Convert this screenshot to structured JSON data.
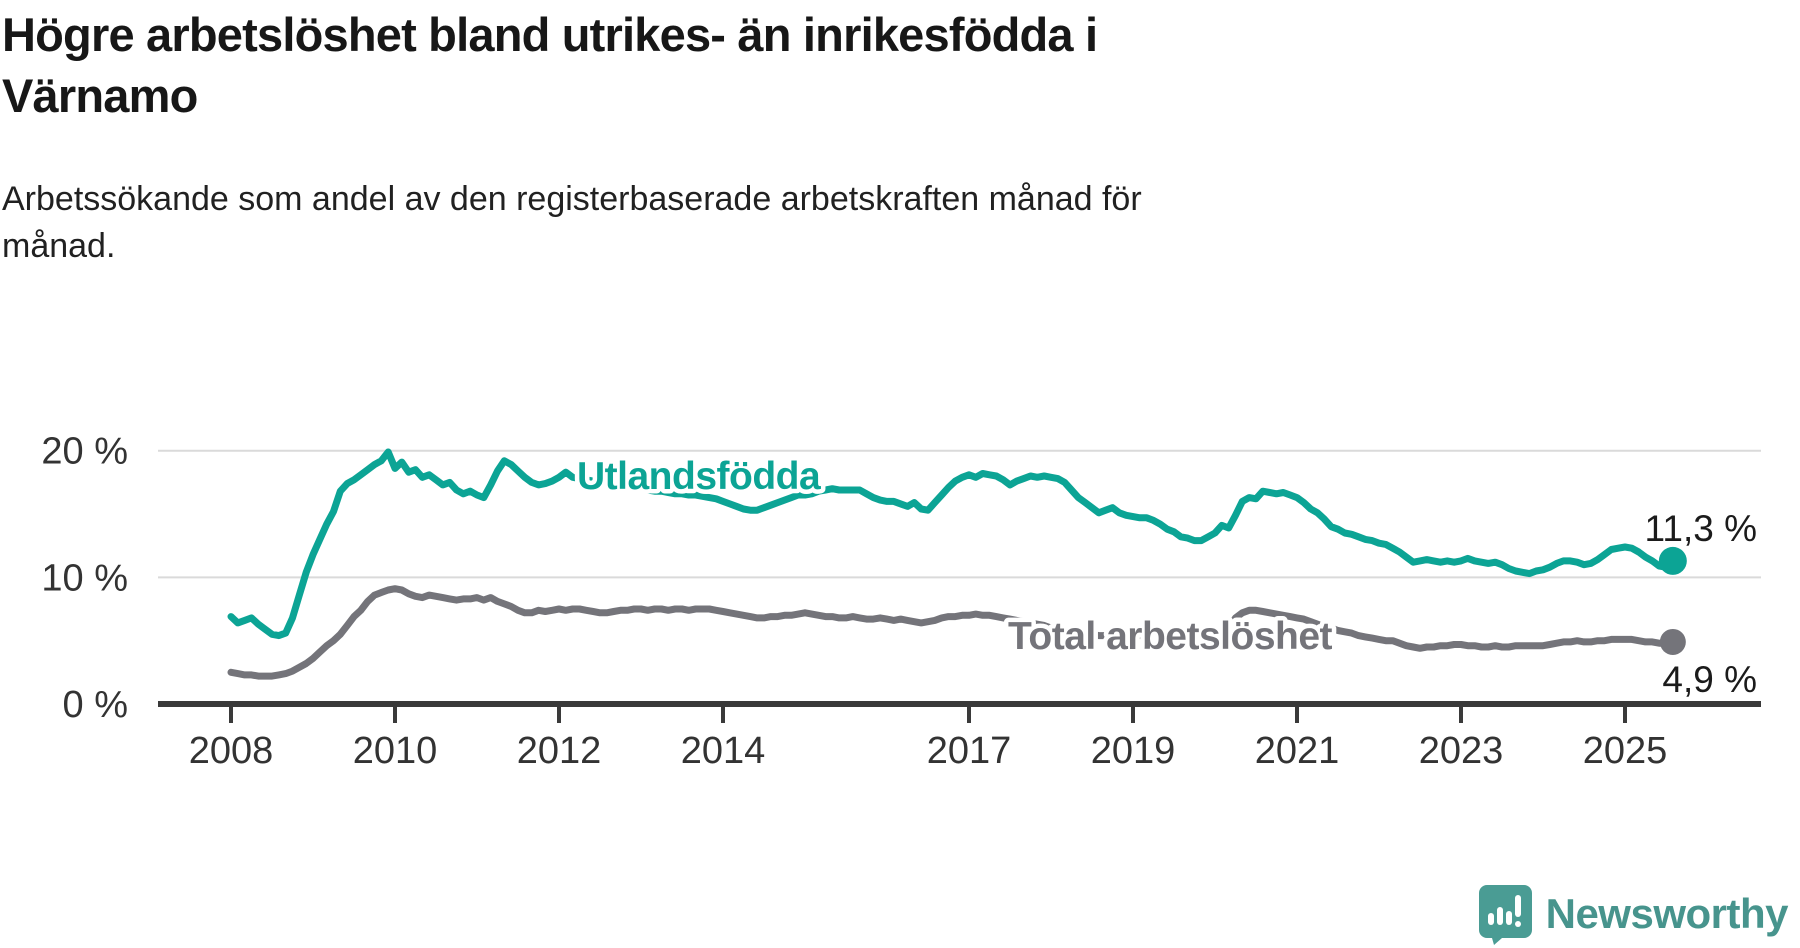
{
  "title_lines": [
    "Högre arbetslöshet bland utrikes- än inrikesfödda i",
    "Värnamo"
  ],
  "subtitle_lines": [
    "Arbetssökande som andel av den registerbaserade arbetskraften månad för",
    "månad."
  ],
  "branding": {
    "logo_text": "Newsworthy",
    "logo_icon": "bar-chart-speech-bubble-icon",
    "logo_color": "#4a9c94",
    "logo_text_color": "#47948d"
  },
  "chart_data": {
    "type": "line",
    "title": "Högre arbetslöshet bland utrikes- än inrikesfödda i Värnamo",
    "subtitle": "Arbetssökande som andel av den registerbaserade arbetskraften månad för månad.",
    "unit": "%",
    "frequency": "monthly",
    "x_start_year": 2008,
    "x_start_month": 1,
    "grid": "horizontal",
    "legend_position": "inline-labels",
    "ylim": [
      0,
      22
    ],
    "x_ticks": [
      {
        "value": 2008,
        "label": "2008"
      },
      {
        "value": 2010,
        "label": "2010"
      },
      {
        "value": 2012,
        "label": "2012"
      },
      {
        "value": 2014,
        "label": "2014"
      },
      {
        "value": 2017,
        "label": "2017"
      },
      {
        "value": 2019,
        "label": "2019"
      },
      {
        "value": 2021,
        "label": "2021"
      },
      {
        "value": 2023,
        "label": "2023"
      },
      {
        "value": 2025,
        "label": "2025"
      }
    ],
    "y_ticks": [
      {
        "value": 20,
        "label": "20 %"
      },
      {
        "value": 10,
        "label": "10 %"
      },
      {
        "value": 0,
        "label": "0 %"
      }
    ],
    "series": [
      {
        "name": "Utlandsfödda",
        "color": "#0ca495",
        "end_label": "11,3 %",
        "latest_value": 11.3,
        "values": [
          6.9,
          6.4,
          6.6,
          6.8,
          6.3,
          5.9,
          5.5,
          5.4,
          5.6,
          6.8,
          8.6,
          10.4,
          11.8,
          13.0,
          14.2,
          15.2,
          16.8,
          17.4,
          17.7,
          18.1,
          18.5,
          18.9,
          19.2,
          19.9,
          18.6,
          19.1,
          18.3,
          18.5,
          17.9,
          18.1,
          17.7,
          17.3,
          17.5,
          16.9,
          16.6,
          16.8,
          16.5,
          16.3,
          17.3,
          18.4,
          19.2,
          18.9,
          18.4,
          17.9,
          17.5,
          17.3,
          17.4,
          17.6,
          17.9,
          18.3,
          17.9,
          17.8,
          17.7,
          17.6,
          17.5,
          17.4,
          17.3,
          17.2,
          17.1,
          17.0,
          17.0,
          16.9,
          16.8,
          16.8,
          16.7,
          16.6,
          16.6,
          16.5,
          16.5,
          16.4,
          16.3,
          16.2,
          16.0,
          15.8,
          15.6,
          15.4,
          15.3,
          15.3,
          15.5,
          15.7,
          15.9,
          16.1,
          16.3,
          16.5,
          16.5,
          16.6,
          16.8,
          16.9,
          17.0,
          16.9,
          16.9,
          16.9,
          16.9,
          16.6,
          16.3,
          16.1,
          16.0,
          16.0,
          15.8,
          15.6,
          15.9,
          15.4,
          15.3,
          15.9,
          16.5,
          17.1,
          17.6,
          17.9,
          18.1,
          17.9,
          18.2,
          18.1,
          18.0,
          17.7,
          17.3,
          17.6,
          17.8,
          18.0,
          17.9,
          18.0,
          17.9,
          17.8,
          17.5,
          16.9,
          16.3,
          15.9,
          15.5,
          15.1,
          15.3,
          15.5,
          15.1,
          14.9,
          14.8,
          14.7,
          14.7,
          14.5,
          14.2,
          13.8,
          13.6,
          13.2,
          13.1,
          12.9,
          12.9,
          13.2,
          13.5,
          14.1,
          13.9,
          14.9,
          16.0,
          16.3,
          16.2,
          16.8,
          16.7,
          16.6,
          16.7,
          16.5,
          16.3,
          15.9,
          15.4,
          15.1,
          14.6,
          14.0,
          13.8,
          13.5,
          13.4,
          13.2,
          13.0,
          12.9,
          12.7,
          12.6,
          12.3,
          12.0,
          11.6,
          11.2,
          11.3,
          11.4,
          11.3,
          11.2,
          11.3,
          11.2,
          11.3,
          11.5,
          11.3,
          11.2,
          11.1,
          11.2,
          11.0,
          10.7,
          10.5,
          10.4,
          10.3,
          10.5,
          10.6,
          10.8,
          11.1,
          11.3,
          11.3,
          11.2,
          11.0,
          11.1,
          11.4,
          11.8,
          12.2,
          12.3,
          12.4,
          12.3,
          12.0,
          11.6,
          11.3,
          10.9,
          10.8,
          11.3
        ]
      },
      {
        "name": "Total arbetslöshet",
        "color": "#74747a",
        "end_label": "4,9 %",
        "latest_value": 4.9,
        "values": [
          2.5,
          2.4,
          2.3,
          2.3,
          2.2,
          2.2,
          2.2,
          2.3,
          2.4,
          2.6,
          2.9,
          3.2,
          3.6,
          4.1,
          4.6,
          5.0,
          5.5,
          6.2,
          6.9,
          7.4,
          8.1,
          8.6,
          8.8,
          9.0,
          9.1,
          9.0,
          8.7,
          8.5,
          8.4,
          8.6,
          8.5,
          8.4,
          8.3,
          8.2,
          8.3,
          8.3,
          8.4,
          8.2,
          8.4,
          8.1,
          7.9,
          7.7,
          7.4,
          7.2,
          7.2,
          7.4,
          7.3,
          7.4,
          7.5,
          7.4,
          7.5,
          7.5,
          7.4,
          7.3,
          7.2,
          7.2,
          7.3,
          7.4,
          7.4,
          7.5,
          7.5,
          7.4,
          7.5,
          7.5,
          7.4,
          7.5,
          7.5,
          7.4,
          7.5,
          7.5,
          7.5,
          7.4,
          7.3,
          7.2,
          7.1,
          7.0,
          6.9,
          6.8,
          6.8,
          6.9,
          6.9,
          7.0,
          7.0,
          7.1,
          7.2,
          7.1,
          7.0,
          6.9,
          6.9,
          6.8,
          6.8,
          6.9,
          6.8,
          6.7,
          6.7,
          6.8,
          6.7,
          6.6,
          6.7,
          6.6,
          6.5,
          6.4,
          6.5,
          6.6,
          6.8,
          6.9,
          6.9,
          7.0,
          7.0,
          7.1,
          7.0,
          7.0,
          6.9,
          6.8,
          6.7,
          6.6,
          6.5,
          6.4,
          6.3,
          6.2,
          6.0,
          5.9,
          5.8,
          5.7,
          5.6,
          5.5,
          5.5,
          5.4,
          5.4,
          5.4,
          5.5,
          5.5,
          5.5,
          5.4,
          5.4,
          5.3,
          5.3,
          5.3,
          5.2,
          5.2,
          5.2,
          5.3,
          5.3,
          5.4,
          5.5,
          5.6,
          6.0,
          6.8,
          7.2,
          7.4,
          7.4,
          7.3,
          7.2,
          7.1,
          7.0,
          6.9,
          6.8,
          6.7,
          6.5,
          6.3,
          6.1,
          6.0,
          5.8,
          5.7,
          5.6,
          5.4,
          5.3,
          5.2,
          5.1,
          5.0,
          5.0,
          4.8,
          4.6,
          4.5,
          4.4,
          4.5,
          4.5,
          4.6,
          4.6,
          4.7,
          4.7,
          4.6,
          4.6,
          4.5,
          4.5,
          4.6,
          4.5,
          4.5,
          4.6,
          4.6,
          4.6,
          4.6,
          4.6,
          4.7,
          4.8,
          4.9,
          4.9,
          5.0,
          4.9,
          4.9,
          5.0,
          5.0,
          5.1,
          5.1,
          5.1,
          5.1,
          5.0,
          4.9,
          4.9,
          4.8,
          4.8,
          4.9
        ]
      }
    ]
  }
}
